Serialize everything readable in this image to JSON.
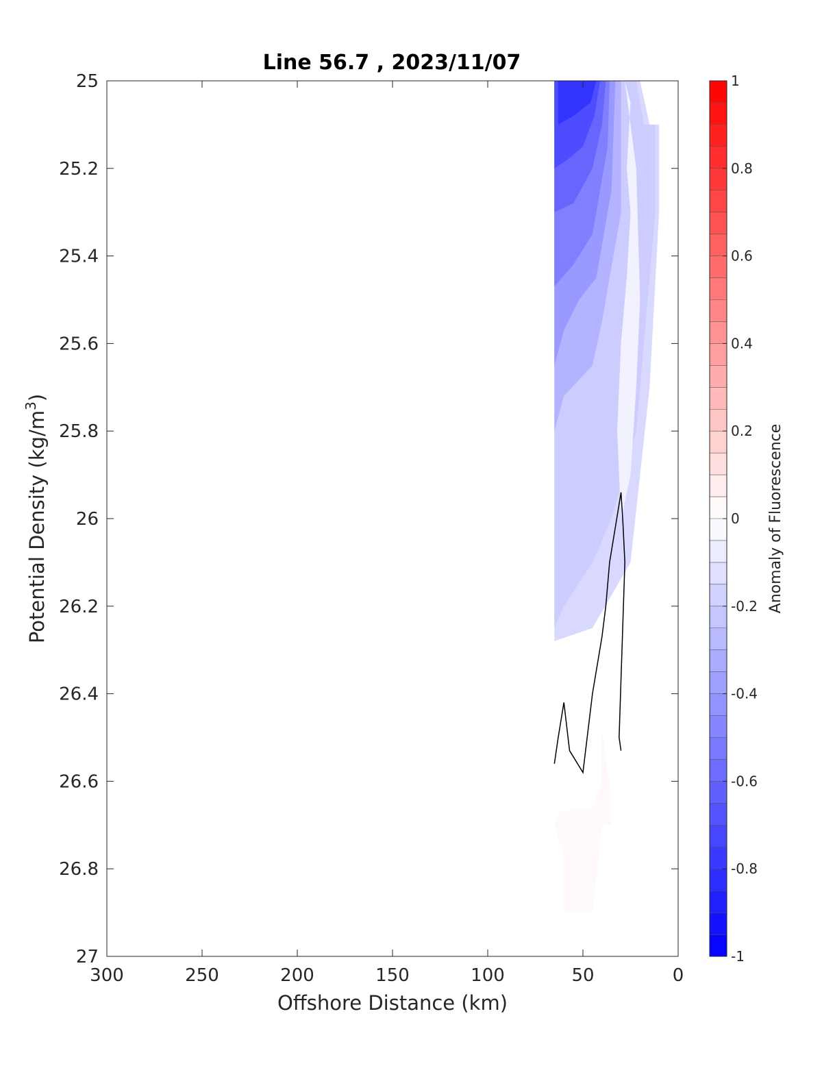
{
  "chart_data": {
    "type": "heatmap",
    "title": "Line 56.7 , 2023/11/07",
    "xlabel": "Offshore Distance (km)",
    "ylabel": "Potential Density (kg/m",
    "ylabel_superscript": "3",
    "ylabel_suffix": ")",
    "xlim": [
      300,
      0
    ],
    "ylim": [
      25,
      27
    ],
    "x_reversed": true,
    "y_reversed": true,
    "x_ticks": [
      300,
      250,
      200,
      150,
      100,
      50,
      0
    ],
    "y_ticks": [
      25,
      25.2,
      25.4,
      25.6,
      25.8,
      26,
      26.2,
      26.4,
      26.6,
      26.8,
      27
    ],
    "x_tick_labels": [
      "300",
      "250",
      "200",
      "150",
      "100",
      "50",
      "0"
    ],
    "y_tick_labels": [
      "25",
      "25.2",
      "25.4",
      "25.6",
      "25.8",
      "26",
      "26.2",
      "26.4",
      "26.6",
      "26.8",
      "27"
    ],
    "grid": false,
    "colorbar": {
      "label": "Anomaly of Fluorescence",
      "range": [
        -1,
        1
      ],
      "levels": 40,
      "ticks": [
        1,
        0.8,
        0.6,
        0.4,
        0.2,
        0,
        -0.2,
        -0.4,
        -0.6,
        -0.8,
        -1
      ],
      "tick_labels": [
        "1",
        "0.8",
        "0.6",
        "0.4",
        "0.2",
        "0",
        "-0.2",
        "-0.4",
        "-0.6",
        "-0.8",
        "-1"
      ],
      "colors": {
        "negative": "#0000ff",
        "zero": "#ffffff",
        "positive": "#ff0000"
      }
    },
    "filled_regions": [
      {
        "value": -0.15,
        "points": [
          [
            65,
            25
          ],
          [
            20,
            25
          ],
          [
            15,
            25.1
          ],
          [
            10,
            25.1
          ],
          [
            10,
            25.3
          ],
          [
            15,
            25.7
          ],
          [
            20,
            25.9
          ],
          [
            25,
            26.1
          ],
          [
            45,
            26.25
          ],
          [
            65,
            26.28
          ]
        ]
      },
      {
        "value": -0.2,
        "points": [
          [
            65,
            25
          ],
          [
            22,
            25
          ],
          [
            18,
            25.1
          ],
          [
            12,
            25.1
          ],
          [
            12,
            25.3
          ],
          [
            18,
            25.6
          ],
          [
            22,
            25.8
          ],
          [
            35,
            26.0
          ],
          [
            45,
            26.1
          ],
          [
            60,
            26.2
          ],
          [
            65,
            26.25
          ]
        ]
      },
      {
        "value": -0.3,
        "points": [
          [
            65,
            25
          ],
          [
            30,
            25
          ],
          [
            30,
            25.3
          ],
          [
            40,
            25.55
          ],
          [
            45,
            25.65
          ],
          [
            60,
            25.72
          ],
          [
            65,
            25.8
          ]
        ]
      },
      {
        "value": -0.4,
        "points": [
          [
            65,
            25
          ],
          [
            33,
            25
          ],
          [
            35,
            25.25
          ],
          [
            43,
            25.45
          ],
          [
            52,
            25.5
          ],
          [
            60,
            25.57
          ],
          [
            65,
            25.65
          ]
        ]
      },
      {
        "value": -0.5,
        "points": [
          [
            65,
            25
          ],
          [
            36,
            25
          ],
          [
            37,
            25.15
          ],
          [
            45,
            25.35
          ],
          [
            55,
            25.42
          ],
          [
            65,
            25.47
          ]
        ]
      },
      {
        "value": -0.6,
        "points": [
          [
            65,
            25
          ],
          [
            38,
            25
          ],
          [
            40,
            25.1
          ],
          [
            45,
            25.2
          ],
          [
            55,
            25.28
          ],
          [
            65,
            25.3
          ]
        ]
      },
      {
        "value": -0.7,
        "points": [
          [
            65,
            25
          ],
          [
            41,
            25
          ],
          [
            44,
            25.08
          ],
          [
            50,
            25.15
          ],
          [
            58,
            25.18
          ],
          [
            65,
            25.2
          ]
        ]
      },
      {
        "value": -0.8,
        "points": [
          [
            63,
            25
          ],
          [
            43,
            25
          ],
          [
            46,
            25.05
          ],
          [
            55,
            25.08
          ],
          [
            63,
            25.1
          ]
        ]
      },
      {
        "value": -0.05,
        "points": [
          [
            28,
            25
          ],
          [
            25,
            25.05
          ],
          [
            27,
            25.2
          ],
          [
            25,
            25.3
          ],
          [
            27,
            25.45
          ],
          [
            30,
            25.6
          ],
          [
            32,
            25.8
          ],
          [
            30,
            26.0
          ],
          [
            25,
            25.9
          ],
          [
            22,
            25.7
          ],
          [
            20,
            25.5
          ],
          [
            22,
            25.2
          ]
        ]
      },
      {
        "value": 0.025,
        "points": [
          [
            40,
            26.48
          ],
          [
            38,
            26.55
          ],
          [
            35,
            26.63
          ],
          [
            35,
            26.7
          ],
          [
            40,
            26.7
          ],
          [
            45,
            26.9
          ],
          [
            60,
            26.9
          ],
          [
            60,
            26.77
          ],
          [
            65,
            26.7
          ],
          [
            62,
            26.67
          ],
          [
            45,
            26.66
          ],
          [
            40,
            26.6
          ]
        ]
      }
    ],
    "contour_lines": [
      {
        "value": 0,
        "points": [
          [
            65,
            26.56
          ],
          [
            63,
            26.5
          ],
          [
            60,
            26.42
          ],
          [
            57,
            26.53
          ],
          [
            50,
            26.58
          ],
          [
            45,
            26.4
          ],
          [
            40,
            26.27
          ],
          [
            38,
            26.2
          ],
          [
            36,
            26.1
          ],
          [
            33,
            26.02
          ],
          [
            30,
            25.94
          ],
          [
            29,
            26.01
          ],
          [
            28,
            26.1
          ],
          [
            31,
            26.5
          ],
          [
            30,
            26.53
          ]
        ]
      }
    ]
  }
}
